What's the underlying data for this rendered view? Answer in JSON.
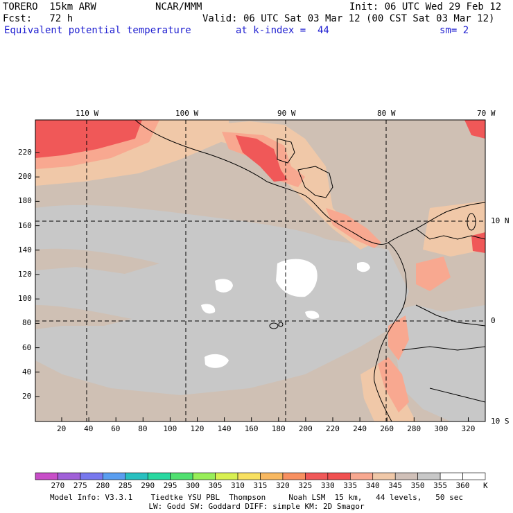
{
  "header": {
    "model": "TORERO  15km ARW",
    "center": "NCAR/MMM",
    "init": "Init: 06 UTC Wed 29 Feb 12",
    "fcst": "Fcst:   72 h",
    "valid": "Valid: 06 UTC Sat 03 Mar 12 (00 CST Sat 03 Mar 12)",
    "field": "Equivalent potential temperature",
    "level": "at k-index =  44",
    "smooth": "sm= 2"
  },
  "map": {
    "lon_labels": [
      "110 W",
      "100 W",
      "90 W",
      "80 W",
      "70 W"
    ],
    "lat_labels": [
      "10 N",
      "0",
      "10 S"
    ],
    "y_ticks": [
      "20",
      "40",
      "60",
      "80",
      "100",
      "120",
      "140",
      "160",
      "180",
      "200",
      "220"
    ],
    "x_ticks": [
      "20",
      "40",
      "60",
      "80",
      "100",
      "120",
      "140",
      "160",
      "180",
      "200",
      "220",
      "240",
      "260",
      "280",
      "300",
      "320"
    ]
  },
  "colorbar": {
    "unit": "K",
    "labels": [
      "270",
      "275",
      "280",
      "285",
      "290",
      "295",
      "300",
      "305",
      "310",
      "315",
      "320",
      "325",
      "330",
      "335",
      "340",
      "345",
      "350",
      "355",
      "360"
    ],
    "colors": [
      "#c84ec8",
      "#a060d8",
      "#7878ee",
      "#5a9ef0",
      "#28c0c0",
      "#28d8a0",
      "#50e070",
      "#98ee58",
      "#d8f050",
      "#f8e060",
      "#f8b860",
      "#f89060",
      "#f05858",
      "#f05050",
      "#f8a890",
      "#f0c8a8",
      "#d0c0b8",
      "#c8c8c8",
      "#ffffff"
    ]
  },
  "footer": {
    "line1": "Model Info: V3.3.1    Tiedtke YSU PBL  Thompson     Noah LSM  15 km,   44 levels,   50 sec",
    "line2": "LW: Godd SW: Goddard DIFF: simple KM: 2D Smagor"
  }
}
